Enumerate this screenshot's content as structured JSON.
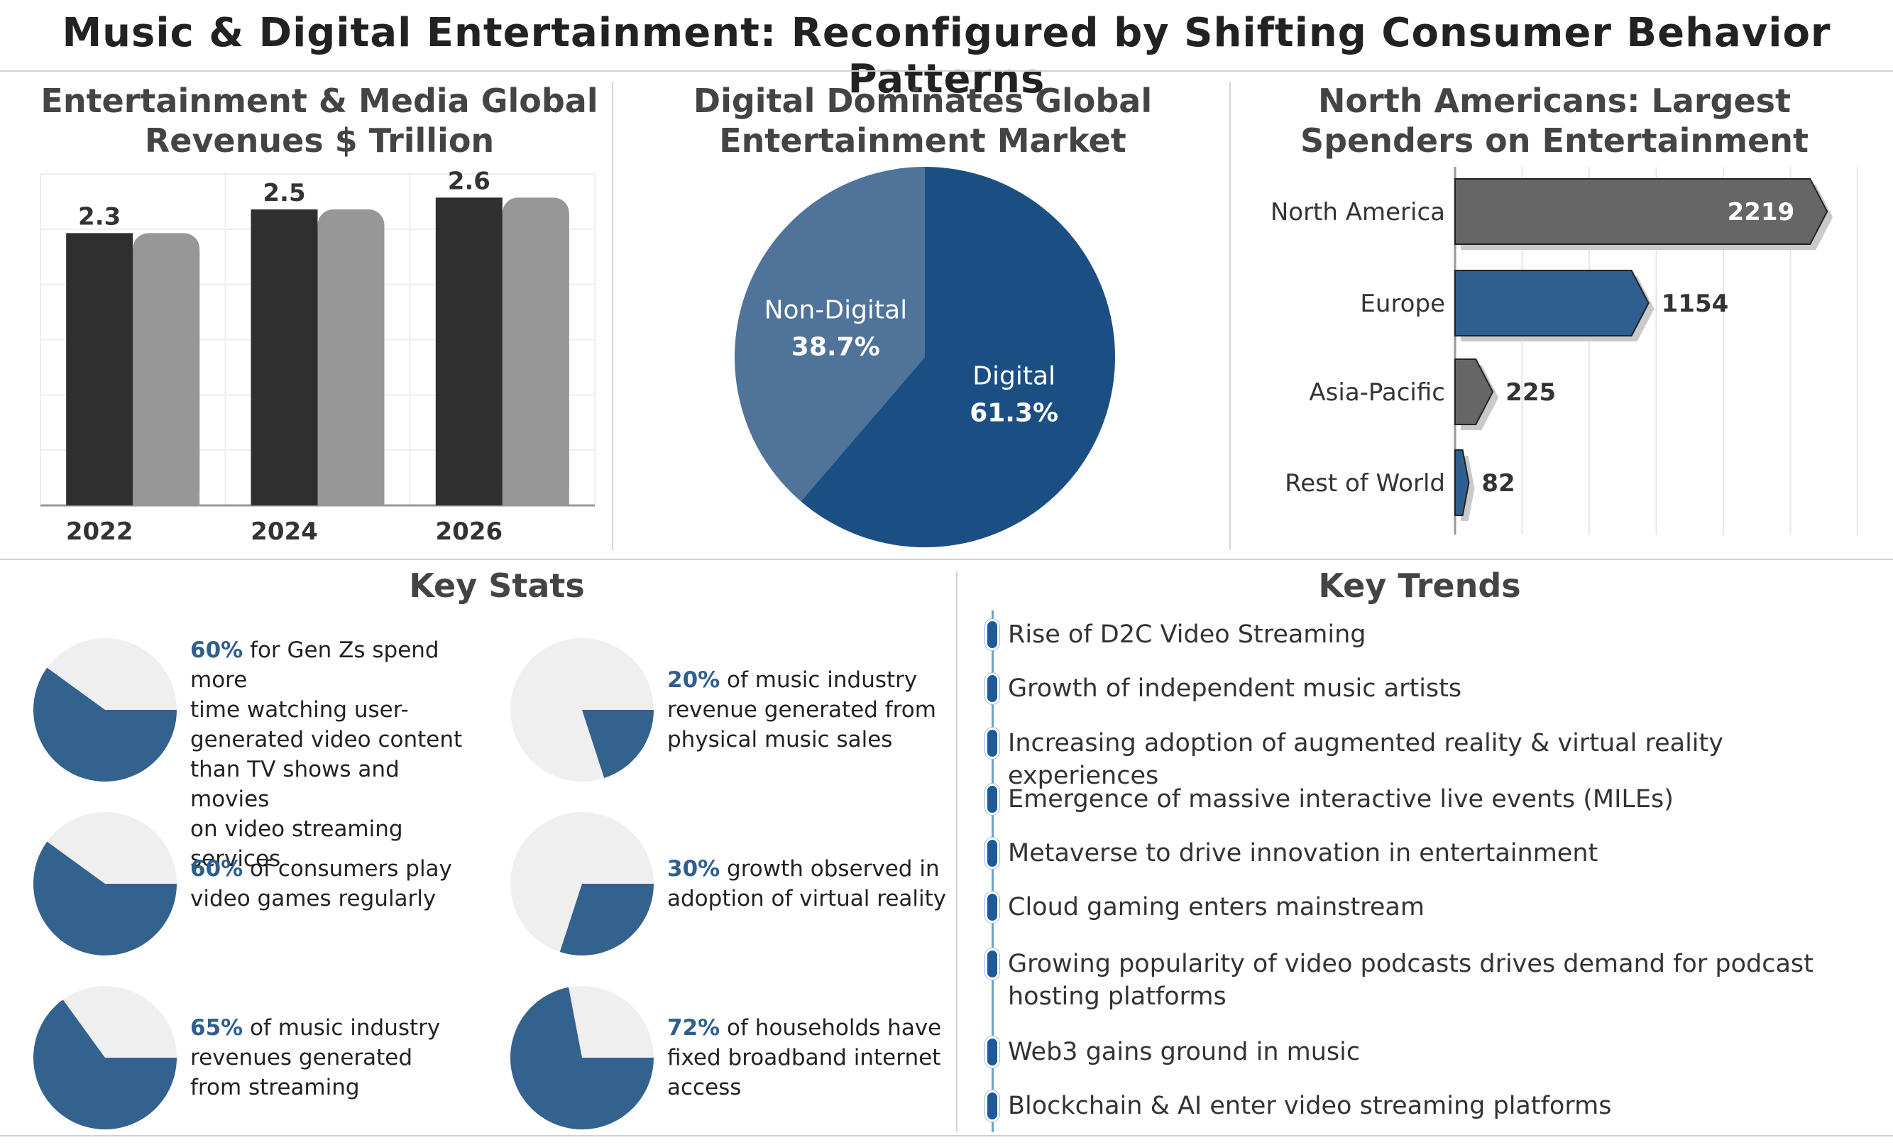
{
  "main_title": "Music & Digital Entertainment: Reconfigured by Shifting Consumer Behavior Patterns",
  "colors": {
    "dark": "#2f2f2f",
    "gray": "#979797",
    "blue": "#1b4f84",
    "blue_light": "#4f7399",
    "bar_gray": "#666666",
    "bar_blue": "#2f5f8e",
    "pie_blue": "#34628f",
    "pie_bg": "#efefef"
  },
  "chart_data": [
    {
      "type": "bar",
      "title": "Entertainment & Media Global Revenues $ Trillion",
      "categories": [
        "2022",
        "2024",
        "2026"
      ],
      "values": [
        2.3,
        2.5,
        2.6
      ],
      "ylim": [
        0,
        2.8
      ],
      "grid": true
    },
    {
      "type": "pie",
      "title": "Digital Dominates Global Entertainment Market",
      "labels": [
        "Digital",
        "Non-Digital"
      ],
      "values": [
        61.3,
        38.7
      ],
      "value_labels": [
        "61.3%",
        "38.7%"
      ]
    },
    {
      "type": "bar",
      "orientation": "horizontal",
      "title": "North Americans: Largest Spenders on Entertainment",
      "categories": [
        "North America",
        "Europe",
        "Asia-Pacific",
        "Rest of World"
      ],
      "values": [
        2219,
        1154,
        225,
        82
      ],
      "xlim": [
        0,
        2400
      ],
      "grid": true
    }
  ],
  "key_stats": {
    "title": "Key Stats",
    "items": [
      {
        "pct": "60%",
        "value": 60,
        "lines": [
          "for Gen Zs spend more",
          "time watching user-",
          "generated video content",
          "than TV shows and movies",
          "on video streaming services"
        ]
      },
      {
        "pct": "20%",
        "value": 20,
        "lines": [
          "of music industry",
          "revenue generated from",
          "physical music sales"
        ]
      },
      {
        "pct": "60%",
        "value": 60,
        "lines": [
          "of consumers play",
          "video games regularly"
        ]
      },
      {
        "pct": "30%",
        "value": 30,
        "lines": [
          "growth observed in",
          "adoption of virtual reality"
        ]
      },
      {
        "pct": "65%",
        "value": 65,
        "lines": [
          "of music industry",
          "revenues generated",
          "from streaming"
        ]
      },
      {
        "pct": "72%",
        "value": 72,
        "lines": [
          "of households have",
          "fixed broadband internet",
          "access"
        ]
      }
    ]
  },
  "key_trends": {
    "title": "Key Trends",
    "items": [
      "Rise of D2C Video Streaming",
      "Growth of independent music artists",
      "Increasing adoption of augmented reality & virtual reality experiences",
      "Emergence of massive interactive live events (MILEs)",
      "Metaverse to drive innovation in entertainment",
      "Cloud gaming enters mainstream",
      "Growing popularity of video podcasts drives demand for podcast hosting platforms",
      "Web3 gains ground in music",
      "Blockchain & AI enter video streaming platforms"
    ]
  }
}
